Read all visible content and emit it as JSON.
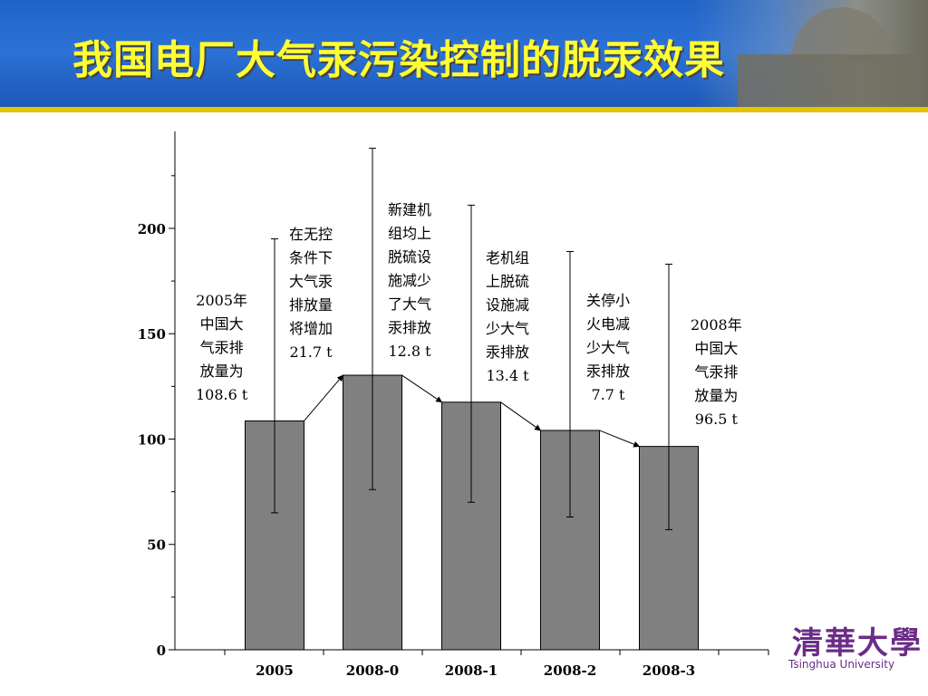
{
  "slide": {
    "title": "我国电厂大气汞污染控制的脱汞效果"
  },
  "chart_data": {
    "type": "bar",
    "categories": [
      "2005",
      "2008-0",
      "2008-1",
      "2008-2",
      "2008-3"
    ],
    "values": [
      108.6,
      130.3,
      117.5,
      104.1,
      96.5
    ],
    "error_low": [
      65,
      76,
      70,
      63,
      57
    ],
    "error_high": [
      195,
      238,
      211,
      189,
      183
    ],
    "ylim": [
      0,
      246
    ],
    "yticks": [
      "0",
      "50",
      "100",
      "150",
      "200"
    ],
    "bar_color": "#808080",
    "annotations": [
      {
        "text": "2005年\n中国大\n气汞排\n放量为\n108.6 t"
      },
      {
        "text": "在无控\n条件下\n大气汞\n排放量\n将增加\n21.7 t"
      },
      {
        "text": "新建机\n组均上\n脱硫设\n施减少\n了大气\n汞排放\n12.8 t"
      },
      {
        "text": "老机组\n上脱硫\n设施减\n少大气\n汞排放\n13.4 t"
      },
      {
        "text": "关停小\n火电减\n少大气\n汞排放\n7.7 t"
      },
      {
        "text": "2008年\n中国大\n气汞排\n放量为\n96.5 t"
      }
    ]
  },
  "logo": {
    "cn": "清華大學",
    "en": "Tsinghua University"
  }
}
